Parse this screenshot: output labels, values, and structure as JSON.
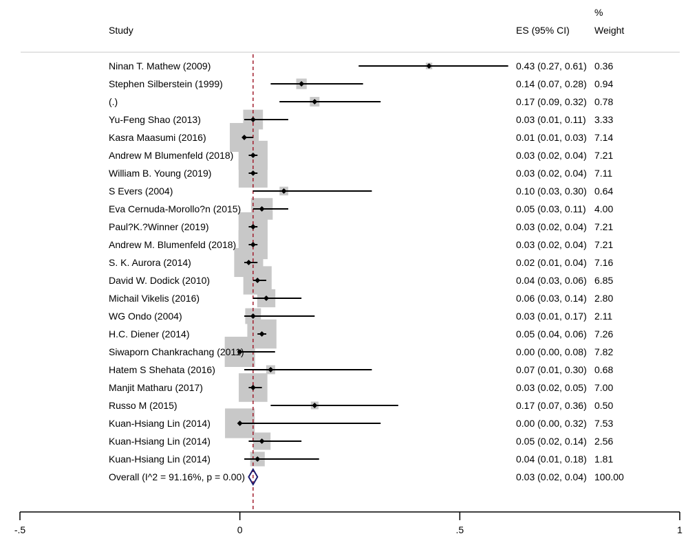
{
  "chart_data": {
    "type": "forest",
    "headers": {
      "study": "Study",
      "es": "ES (95% CI)",
      "weight_line1": "%",
      "weight_line2": "Weight"
    },
    "xlim": [
      -0.5,
      1
    ],
    "x_ticks": [
      -0.5,
      0,
      0.5,
      1
    ],
    "x_tick_labels": [
      "-.5",
      "0",
      ".5",
      "1"
    ],
    "overall_line_x": 0.03,
    "colors": {
      "box": "#c8c8c8",
      "ref_line": "#a01c2c",
      "diamond": "#1a1a6e",
      "line": "#000000"
    },
    "studies": [
      {
        "label": "Ninan T. Mathew (2009)",
        "es": 0.43,
        "lo": 0.27,
        "hi": 0.61,
        "weight": 0.36,
        "es_text": "0.43 (0.27, 0.61)",
        "weight_text": "0.36"
      },
      {
        "label": "Stephen Silberstein (1999)",
        "es": 0.14,
        "lo": 0.07,
        "hi": 0.28,
        "weight": 0.94,
        "es_text": "0.14 (0.07, 0.28)",
        "weight_text": "0.94"
      },
      {
        "label": "(.)",
        "es": 0.17,
        "lo": 0.09,
        "hi": 0.32,
        "weight": 0.78,
        "es_text": "0.17 (0.09, 0.32)",
        "weight_text": "0.78"
      },
      {
        "label": "Yu-Feng Shao (2013)",
        "es": 0.03,
        "lo": 0.01,
        "hi": 0.11,
        "weight": 3.33,
        "es_text": "0.03 (0.01, 0.11)",
        "weight_text": "3.33"
      },
      {
        "label": "Kasra Maasumi (2016)",
        "es": 0.01,
        "lo": 0.01,
        "hi": 0.03,
        "weight": 7.14,
        "es_text": "0.01 (0.01, 0.03)",
        "weight_text": "7.14"
      },
      {
        "label": "Andrew M Blumenfeld (2018)",
        "es": 0.03,
        "lo": 0.02,
        "hi": 0.04,
        "weight": 7.21,
        "es_text": "0.03 (0.02, 0.04)",
        "weight_text": "7.21"
      },
      {
        "label": "William B. Young (2019)",
        "es": 0.03,
        "lo": 0.02,
        "hi": 0.04,
        "weight": 7.11,
        "es_text": "0.03 (0.02, 0.04)",
        "weight_text": "7.11"
      },
      {
        "label": "S Evers (2004)",
        "es": 0.1,
        "lo": 0.03,
        "hi": 0.3,
        "weight": 0.64,
        "es_text": "0.10 (0.03, 0.30)",
        "weight_text": "0.64"
      },
      {
        "label": "Eva Cernuda-Morollo?n (2015)",
        "es": 0.05,
        "lo": 0.03,
        "hi": 0.11,
        "weight": 4.0,
        "es_text": "0.05 (0.03, 0.11)",
        "weight_text": "4.00"
      },
      {
        "label": "Paul?K.?Winner (2019)",
        "es": 0.03,
        "lo": 0.02,
        "hi": 0.04,
        "weight": 7.21,
        "es_text": "0.03 (0.02, 0.04)",
        "weight_text": "7.21"
      },
      {
        "label": "Andrew M. Blumenfeld (2018)",
        "es": 0.03,
        "lo": 0.02,
        "hi": 0.04,
        "weight": 7.21,
        "es_text": "0.03 (0.02, 0.04)",
        "weight_text": "7.21"
      },
      {
        "label": "S. K. Aurora (2014)",
        "es": 0.02,
        "lo": 0.01,
        "hi": 0.04,
        "weight": 7.16,
        "es_text": "0.02 (0.01, 0.04)",
        "weight_text": "7.16"
      },
      {
        "label": "David W. Dodick (2010)",
        "es": 0.04,
        "lo": 0.03,
        "hi": 0.06,
        "weight": 6.85,
        "es_text": "0.04 (0.03, 0.06)",
        "weight_text": "6.85"
      },
      {
        "label": "Michail Vikelis (2016)",
        "es": 0.06,
        "lo": 0.03,
        "hi": 0.14,
        "weight": 2.8,
        "es_text": "0.06 (0.03, 0.14)",
        "weight_text": "2.80"
      },
      {
        "label": "WG Ondo (2004)",
        "es": 0.03,
        "lo": 0.01,
        "hi": 0.17,
        "weight": 2.11,
        "es_text": "0.03 (0.01, 0.17)",
        "weight_text": "2.11"
      },
      {
        "label": "H.C. Diener (2014)",
        "es": 0.05,
        "lo": 0.04,
        "hi": 0.06,
        "weight": 7.26,
        "es_text": "0.05 (0.04, 0.06)",
        "weight_text": "7.26"
      },
      {
        "label": "Siwaporn Chankrachang (2011)",
        "es": 0.0,
        "lo": 0.0,
        "hi": 0.08,
        "weight": 7.82,
        "es_text": "0.00 (0.00, 0.08)",
        "weight_text": "7.82"
      },
      {
        "label": "Hatem S Shehata (2016)",
        "es": 0.07,
        "lo": 0.01,
        "hi": 0.3,
        "weight": 0.68,
        "es_text": "0.07 (0.01, 0.30)",
        "weight_text": "0.68"
      },
      {
        "label": "Manjit Matharu (2017)",
        "es": 0.03,
        "lo": 0.02,
        "hi": 0.05,
        "weight": 7.0,
        "es_text": "0.03 (0.02, 0.05)",
        "weight_text": "7.00"
      },
      {
        "label": "Russo M (2015)",
        "es": 0.17,
        "lo": 0.07,
        "hi": 0.36,
        "weight": 0.5,
        "es_text": "0.17 (0.07, 0.36)",
        "weight_text": "0.50"
      },
      {
        "label": "Kuan-Hsiang Lin (2014)",
        "es": 0.0,
        "lo": 0.0,
        "hi": 0.32,
        "weight": 7.53,
        "es_text": "0.00 (0.00, 0.32)",
        "weight_text": "7.53"
      },
      {
        "label": "Kuan-Hsiang Lin (2014)",
        "es": 0.05,
        "lo": 0.02,
        "hi": 0.14,
        "weight": 2.56,
        "es_text": "0.05 (0.02, 0.14)",
        "weight_text": "2.56"
      },
      {
        "label": "Kuan-Hsiang Lin (2014)",
        "es": 0.04,
        "lo": 0.01,
        "hi": 0.18,
        "weight": 1.81,
        "es_text": "0.04 (0.01, 0.18)",
        "weight_text": "1.81"
      }
    ],
    "overall": {
      "label": "Overall  (I^2 = 91.16%, p = 0.00)",
      "es": 0.03,
      "lo": 0.02,
      "hi": 0.04,
      "es_text": "0.03 (0.02, 0.04)",
      "weight_text": "100.00"
    }
  }
}
